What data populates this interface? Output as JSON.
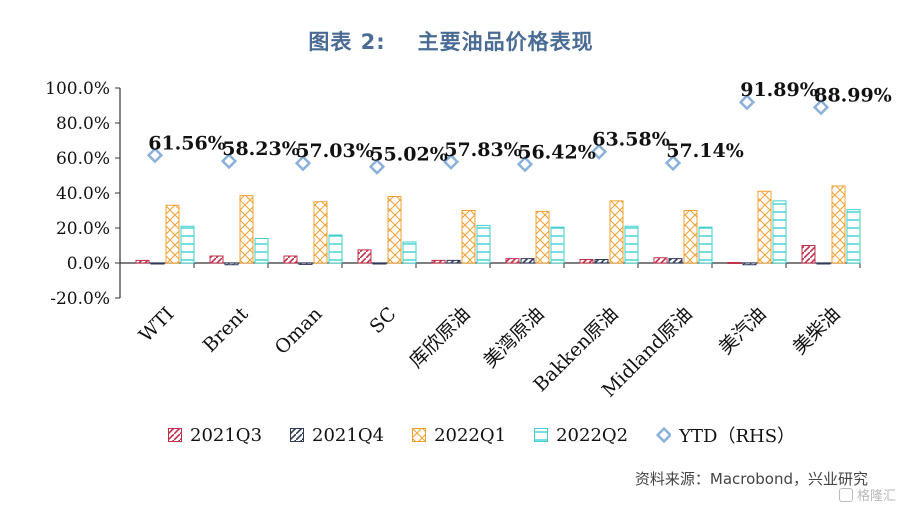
{
  "title": {
    "label": "图表 2:",
    "text": "主要油品价格表现"
  },
  "source": "资料来源：Macrobond，兴业研究",
  "watermark": "格隆汇",
  "colors": {
    "q3": "#c0304b",
    "q4": "#2f3a5c",
    "q1": "#f0a030",
    "q2": "#40d0d0",
    "ytd": "#8ab0dc"
  },
  "chart_data": {
    "type": "bar",
    "categories": [
      "WTI",
      "Brent",
      "Oman",
      "SC",
      "库欣原油",
      "美湾原油",
      "Bakken原油",
      "Midland原油",
      "美汽油",
      "美柴油"
    ],
    "series": [
      {
        "name": "2021Q3",
        "values": [
          1.5,
          4.0,
          4.0,
          7.5,
          1.5,
          2.5,
          2.0,
          3.0,
          0.3,
          10.0
        ]
      },
      {
        "name": "2021Q4",
        "values": [
          -0.5,
          -1.0,
          -0.8,
          -0.5,
          1.5,
          2.5,
          2.0,
          2.5,
          -1.0,
          -0.5
        ]
      },
      {
        "name": "2022Q1",
        "values": [
          33.0,
          38.5,
          35.0,
          38.0,
          30.0,
          29.5,
          35.5,
          30.0,
          41.0,
          44.0
        ]
      },
      {
        "name": "2022Q2",
        "values": [
          21.0,
          14.0,
          16.0,
          12.0,
          21.5,
          20.5,
          21.0,
          20.5,
          35.5,
          30.5
        ]
      }
    ],
    "ytd": {
      "name": "YTD（RHS）",
      "values": [
        61.56,
        58.23,
        57.03,
        55.02,
        57.83,
        56.42,
        63.58,
        57.14,
        91.89,
        88.99
      ],
      "labels": [
        "61.56%",
        "58.23%",
        "57.03%",
        "55.02%",
        "57.83%",
        "56.42%",
        "63.58%",
        "57.14%",
        "91.89%",
        "88.99%"
      ]
    },
    "ylim": [
      -20,
      100
    ],
    "yticks": [
      "-20.0%",
      "0.0%",
      "20.0%",
      "40.0%",
      "60.0%",
      "80.0%",
      "100.0%"
    ],
    "ytick_values": [
      -20,
      0,
      20,
      40,
      60,
      80,
      100
    ],
    "legend_position": "bottom",
    "grid": false
  }
}
